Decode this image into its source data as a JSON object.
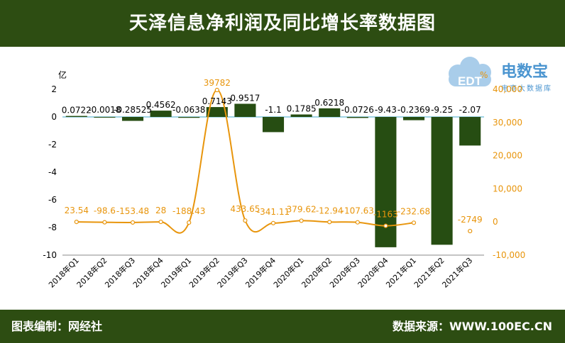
{
  "header": {
    "title": "天泽信息净利润及同比增长率数据图"
  },
  "footer": {
    "editor": "图表编制：网经社",
    "source": "数据来源：WWW.100EC.CN"
  },
  "logo": {
    "brand": "电数宝",
    "tagline": "电商大数据库",
    "mark": "EDT"
  },
  "colors": {
    "bar": "#264d12",
    "line": "#e8950c",
    "header": "#2d4d12",
    "axis_left": "#000000",
    "axis_right": "#e8950c"
  },
  "chart_data": {
    "type": "bar",
    "categories": [
      "2018年Q1",
      "2018年Q2",
      "2018年Q3",
      "2018年Q4",
      "2019年Q1",
      "2019年Q2",
      "2019年Q3",
      "2019年Q4",
      "2020年Q1",
      "2020年Q2",
      "2020年Q3",
      "2020年Q4",
      "2021年Q1",
      "2021年Q2",
      "2021年Q3"
    ],
    "y_unit_label": "亿",
    "y2_unit_label": "%",
    "ylim": [
      -10,
      2
    ],
    "yticks": [
      -10,
      -8,
      -6,
      -4,
      -2,
      0,
      2
    ],
    "y2lim": [
      -10000,
      40000
    ],
    "y2ticks": [
      -10000,
      0,
      10000,
      20000,
      30000,
      40000
    ],
    "y2tick_labels": [
      "-10,000",
      "0",
      "10,000",
      "20,000",
      "30,000",
      "40,000"
    ],
    "series": [
      {
        "kind": "bar",
        "values": [
          0.0722,
          -0.0018,
          -0.28525,
          0.4562,
          -0.0638,
          0.7143,
          0.9517,
          -1.1,
          0.1785,
          0.6218,
          -0.0726,
          -9.43,
          -0.2369,
          -9.25,
          -2.07
        ],
        "labels": [
          "0.0722",
          "-0.0018",
          "-0.28525",
          "0.4562",
          "-0.0638",
          "0.7143",
          "0.9517",
          "-1.1",
          "0.1785",
          "0.6218",
          "-0.0726",
          "-9.43",
          "-0.2369",
          "-9.25",
          "-2.07"
        ]
      },
      {
        "kind": "line",
        "axis": "right",
        "values": [
          23.54,
          -98.6,
          -153.48,
          28,
          -188.43,
          39782,
          433.65,
          -341.11,
          379.62,
          -12.94,
          -107.63,
          -1163,
          -232.68,
          null,
          -2749
        ],
        "labels": [
          "23.54",
          "-98.6",
          "-153.48",
          "28",
          "-188.43",
          "39782",
          "433.65",
          "-341.11",
          "379.62",
          "-12.94",
          "-107.63",
          "-1163",
          "-232.68",
          "",
          "-2749"
        ]
      }
    ]
  }
}
